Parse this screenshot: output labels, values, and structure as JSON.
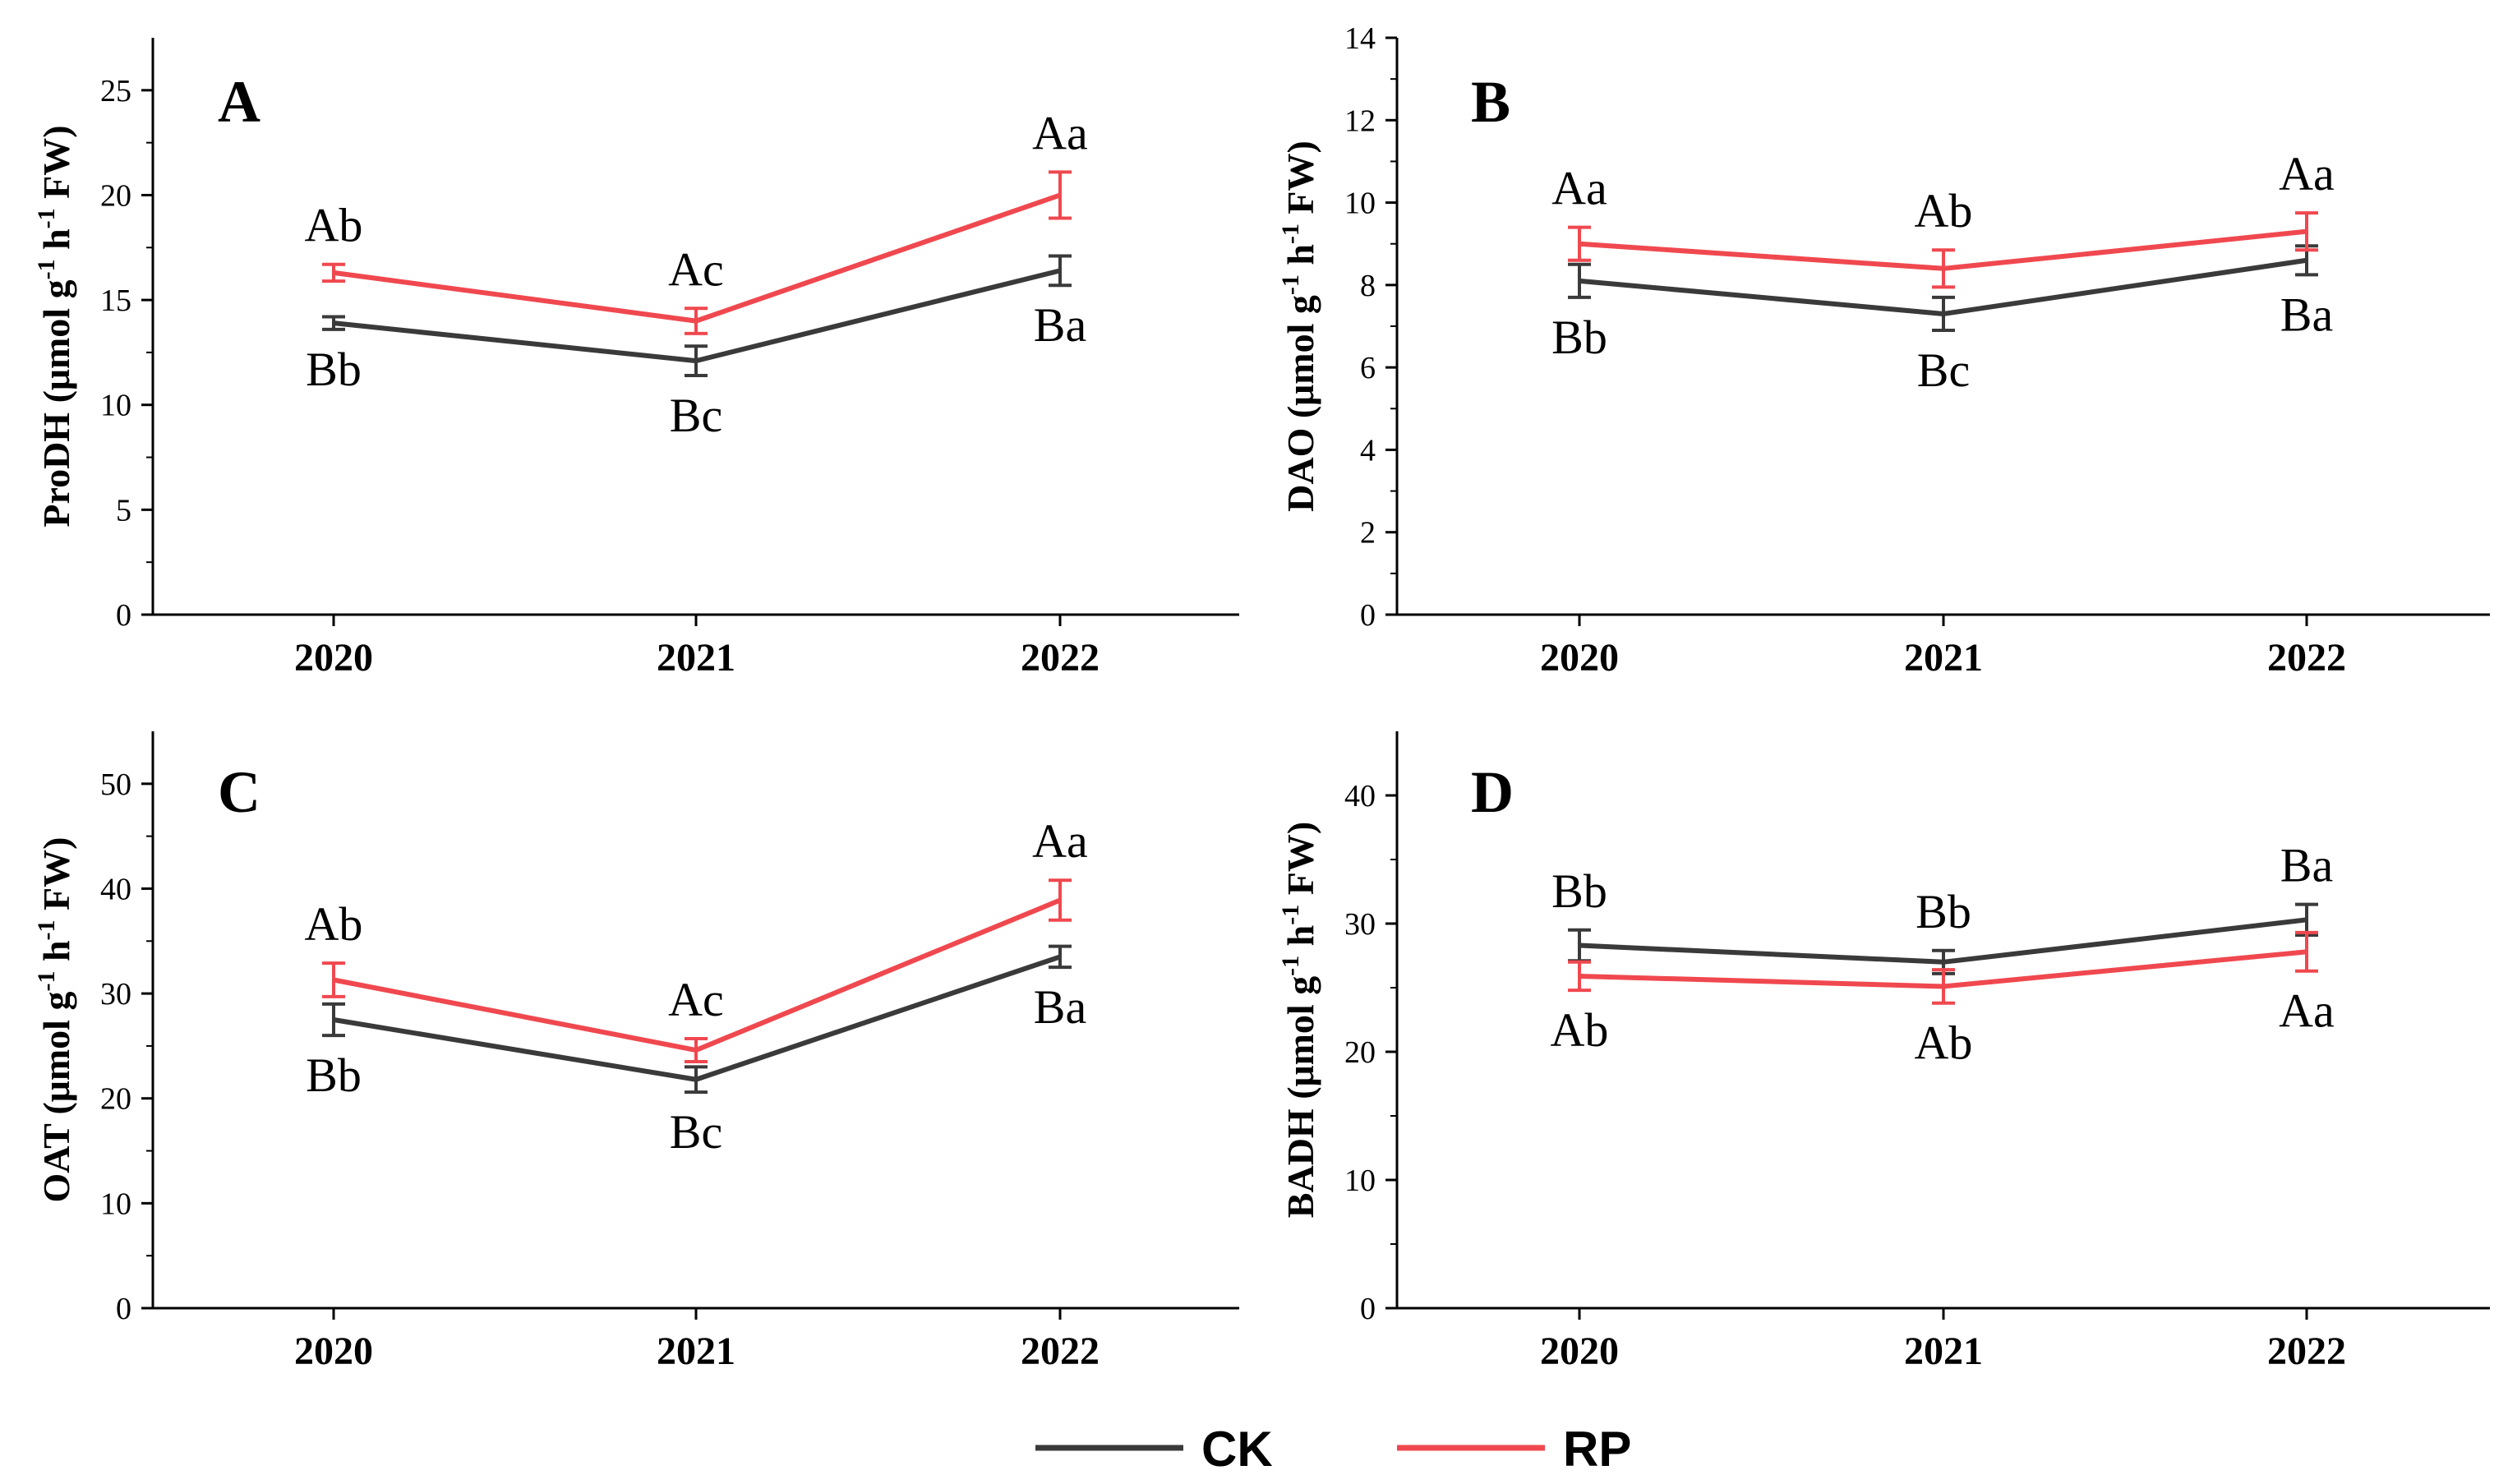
{
  "legend": [
    {
      "name": "CK",
      "color": "#3a3a3a"
    },
    {
      "name": "RP",
      "color": "#f0484f"
    }
  ],
  "chart_data": [
    {
      "type": "line",
      "panel": "A",
      "title": "",
      "ylabel_main": "ProDH (μmol g",
      "ylabel_parts": [
        "ProDH (μmol g",
        "-1",
        " h",
        "-1",
        " FW)"
      ],
      "categories": [
        "2020",
        "2021",
        "2022"
      ],
      "ylim": [
        0,
        27.5
      ],
      "yticks": [
        0,
        5,
        10,
        15,
        20,
        25
      ],
      "series": [
        {
          "name": "CK",
          "values": [
            13.9,
            12.1,
            16.4
          ],
          "errors": [
            0.3,
            0.7,
            0.7
          ],
          "labels": [
            "Bb",
            "Bc",
            "Ba"
          ],
          "label_pos": "below"
        },
        {
          "name": "RP",
          "values": [
            16.3,
            14.0,
            20.0
          ],
          "errors": [
            0.4,
            0.6,
            1.1
          ],
          "labels": [
            "Ab",
            "Ac",
            "Aa"
          ],
          "label_pos": "above"
        }
      ]
    },
    {
      "type": "line",
      "panel": "B",
      "title": "",
      "ylabel_main": "DAO (μmol g",
      "ylabel_parts": [
        "DAO (μmol g",
        "-1",
        " h",
        "-1",
        " FW)"
      ],
      "categories": [
        "2020",
        "2021",
        "2022"
      ],
      "ylim": [
        0,
        14
      ],
      "yticks": [
        0,
        2,
        4,
        6,
        8,
        10,
        12,
        14
      ],
      "series": [
        {
          "name": "CK",
          "values": [
            8.1,
            7.3,
            8.6
          ],
          "errors": [
            0.4,
            0.4,
            0.35
          ],
          "labels": [
            "Bb",
            "Bc",
            "Ba"
          ],
          "label_pos": "below"
        },
        {
          "name": "RP",
          "values": [
            9.0,
            8.4,
            9.3
          ],
          "errors": [
            0.4,
            0.45,
            0.45
          ],
          "labels": [
            "Aa",
            "Ab",
            "Aa"
          ],
          "label_pos": "above"
        }
      ]
    },
    {
      "type": "line",
      "panel": "C",
      "title": "",
      "ylabel_main": "OAT (μmol g",
      "ylabel_parts": [
        "OAT (μmol g",
        "-1",
        " h",
        "-1",
        " FW)"
      ],
      "categories": [
        "2020",
        "2021",
        "2022"
      ],
      "ylim": [
        0,
        55
      ],
      "yticks": [
        0,
        10,
        20,
        30,
        40,
        50
      ],
      "series": [
        {
          "name": "CK",
          "values": [
            27.5,
            21.8,
            33.5
          ],
          "errors": [
            1.5,
            1.2,
            1.0
          ],
          "labels": [
            "Bb",
            "Bc",
            "Ba"
          ],
          "label_pos": "below"
        },
        {
          "name": "RP",
          "values": [
            31.3,
            24.6,
            38.9
          ],
          "errors": [
            1.6,
            1.1,
            1.9
          ],
          "labels": [
            "Ab",
            "Ac",
            "Aa"
          ],
          "label_pos": "above"
        }
      ]
    },
    {
      "type": "line",
      "panel": "D",
      "title": "",
      "ylabel_main": "BADH (μmol g",
      "ylabel_parts": [
        "BADH (μmol g",
        "-1",
        " h",
        "-1",
        " FW)"
      ],
      "categories": [
        "2020",
        "2021",
        "2022"
      ],
      "ylim": [
        0,
        45
      ],
      "yticks": [
        0,
        10,
        20,
        30,
        40
      ],
      "series": [
        {
          "name": "CK",
          "values": [
            28.3,
            27.0,
            30.3
          ],
          "errors": [
            1.2,
            0.9,
            1.2
          ],
          "labels": [
            "Bb",
            "Bb",
            "Ba"
          ],
          "label_pos": "above"
        },
        {
          "name": "RP",
          "values": [
            25.9,
            25.1,
            27.8
          ],
          "errors": [
            1.1,
            1.3,
            1.5
          ],
          "labels": [
            "Ab",
            "Ab",
            "Aa"
          ],
          "label_pos": "below"
        }
      ]
    }
  ]
}
